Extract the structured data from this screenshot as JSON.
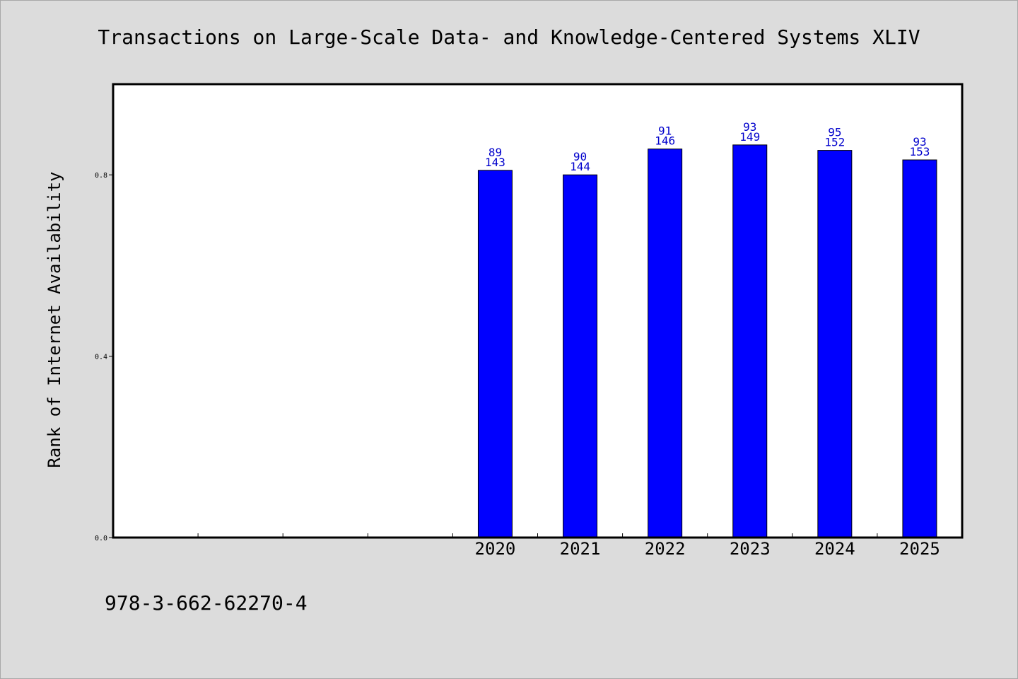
{
  "chart_data": {
    "type": "bar",
    "title": "Transactions on Large-Scale Data- and Knowledge-Centered Systems XLIV",
    "xlabel": "",
    "ylabel": "Rank of Internet Availability",
    "ylim": [
      0,
      1.0
    ],
    "yticks": [
      "0.0",
      "0.4",
      "0.8"
    ],
    "ytick_values": [
      0,
      0.4,
      0.8
    ],
    "grid": false,
    "bar_color": "#0000ff",
    "label_color": "#0000cc",
    "categories": [
      "",
      "",
      "",
      "",
      "2020",
      "2021",
      "2022",
      "2023",
      "2024",
      "2025"
    ],
    "values": [
      null,
      null,
      null,
      null,
      0.81,
      0.8,
      0.857,
      0.866,
      0.854,
      0.833
    ],
    "labels_top": [
      "",
      "",
      "",
      "",
      "89",
      "90",
      "91",
      "93",
      "95",
      "93"
    ],
    "labels_bottom": [
      "",
      "",
      "",
      "",
      "143",
      "144",
      "146",
      "149",
      "152",
      "153"
    ]
  },
  "footer": {
    "isbn": "978-3-662-62270-4"
  }
}
